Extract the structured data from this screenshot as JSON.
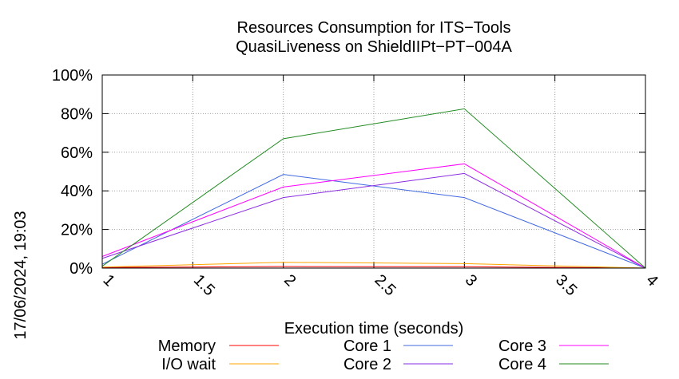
{
  "chart_data": {
    "type": "line",
    "title_lines": [
      "Resources Consumption for ITS−Tools",
      "QuasiLiveness on ShieldIIPt−PT−004A"
    ],
    "xlabel": "Execution time (seconds)",
    "ylabel": "",
    "timestamp": "17/06/2024, 19:03",
    "xlim": [
      1,
      4
    ],
    "ylim": [
      0,
      100
    ],
    "x_ticks": [
      1,
      1.5,
      2,
      2.5,
      3,
      3.5,
      4
    ],
    "x_tick_labels": [
      "1",
      "1.5",
      "2",
      "2.5",
      "3",
      "3.5",
      "4"
    ],
    "y_ticks": [
      0,
      20,
      40,
      60,
      80,
      100
    ],
    "y_tick_labels": [
      "0%",
      "20%",
      "40%",
      "60%",
      "80%",
      "100%"
    ],
    "grid": true,
    "legend_placement": "bottom",
    "x": [
      1,
      2,
      3,
      4
    ],
    "series": [
      {
        "name": "Memory",
        "color": "#ff0000",
        "values": [
          0.3,
          0.8,
          0.7,
          0
        ]
      },
      {
        "name": "I/O wait",
        "color": "#ffa500",
        "values": [
          0.5,
          3.0,
          2.3,
          0
        ]
      },
      {
        "name": "Core 1",
        "color": "#4169e1",
        "values": [
          2.0,
          48.5,
          36.5,
          0
        ]
      },
      {
        "name": "Core 2",
        "color": "#8a2be2",
        "values": [
          5.0,
          36.5,
          49.0,
          0
        ]
      },
      {
        "name": "Core 3",
        "color": "#ff00ff",
        "values": [
          6.0,
          42.0,
          54.0,
          0
        ]
      },
      {
        "name": "Core 4",
        "color": "#228b22",
        "values": [
          1.0,
          67.0,
          82.5,
          0
        ]
      }
    ]
  }
}
